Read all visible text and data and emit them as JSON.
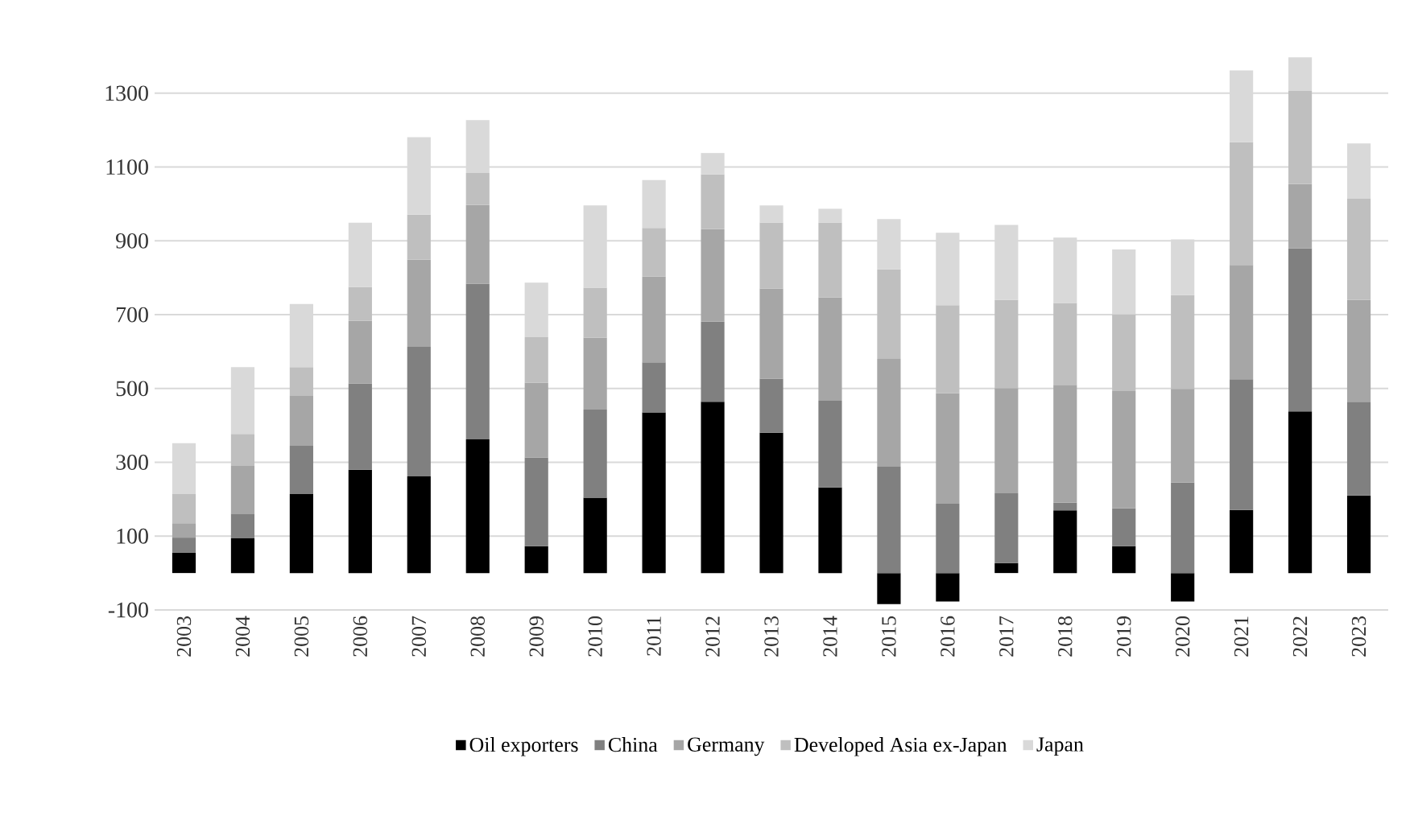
{
  "chart_data": {
    "type": "bar",
    "stacked": true,
    "categories": [
      "2003",
      "2004",
      "2005",
      "2006",
      "2007",
      "2008",
      "2009",
      "2010",
      "2011",
      "2012",
      "2013",
      "2014",
      "2015",
      "2016",
      "2017",
      "2018",
      "2019",
      "2020",
      "2021",
      "2022",
      "2023"
    ],
    "series": [
      {
        "name": "Oil exporters",
        "color": "#000000",
        "values": [
          55,
          94,
          214,
          280,
          262,
          362,
          73,
          204,
          435,
          464,
          380,
          232,
          -84,
          -77,
          27,
          170,
          73,
          -77,
          171,
          438,
          210
        ]
      },
      {
        "name": "China",
        "color": "#808080",
        "values": [
          41,
          67,
          131,
          234,
          351,
          422,
          240,
          239,
          136,
          217,
          147,
          235,
          288,
          188,
          189,
          21,
          102,
          245,
          354,
          442,
          254
        ]
      },
      {
        "name": "Germany",
        "color": "#a6a6a6",
        "values": [
          39,
          129,
          135,
          169,
          236,
          213,
          203,
          195,
          232,
          251,
          244,
          280,
          292,
          299,
          285,
          319,
          318,
          254,
          310,
          174,
          276
        ]
      },
      {
        "name": "Developed Asia ex-Japan",
        "color": "#bfbfbf",
        "values": [
          79,
          87,
          78,
          92,
          122,
          87,
          123,
          135,
          132,
          148,
          178,
          202,
          243,
          239,
          239,
          222,
          208,
          254,
          332,
          252,
          274
        ]
      },
      {
        "name": "Japan",
        "color": "#d9d9d9",
        "values": [
          138,
          181,
          171,
          174,
          210,
          143,
          148,
          223,
          130,
          58,
          47,
          38,
          136,
          196,
          203,
          177,
          176,
          151,
          195,
          91,
          150
        ]
      }
    ],
    "ylim": [
      -100,
      1400
    ],
    "yticks": [
      -100,
      100,
      300,
      500,
      700,
      900,
      1100,
      1300
    ],
    "grid": "y",
    "legend": "bottom"
  }
}
